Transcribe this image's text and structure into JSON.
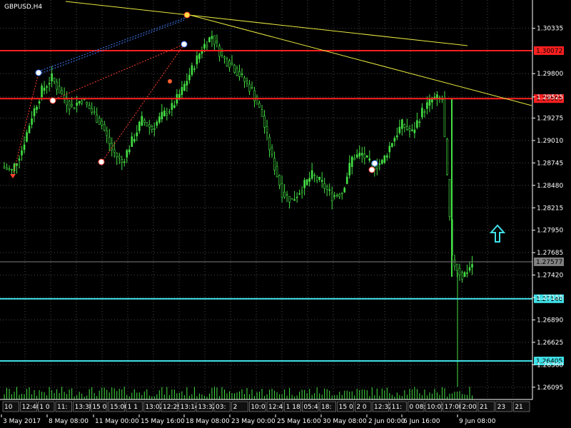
{
  "chart_data": {
    "type": "candlestick",
    "symbol_label": "GBPUSD,H4",
    "price_scale": {
      "min": 1.2595,
      "max": 1.3067,
      "ticks": [
        "1.30335",
        "1.29800",
        "1.29525",
        "1.29275",
        "1.29010",
        "1.28745",
        "1.28480",
        "1.28215",
        "1.27950",
        "1.27685",
        "1.27420",
        "1.27155",
        "1.26890",
        "1.26625",
        "1.26360",
        "1.26095"
      ]
    },
    "horizontal_lines": [
      {
        "price": 1.30072,
        "color": "#ff2020",
        "label": "1.30072"
      },
      {
        "price": 1.29505,
        "color": "#ff2020",
        "label": "1.29505"
      },
      {
        "price": 1.2714,
        "color": "#40e0e8",
        "label": "1.27140"
      },
      {
        "price": 1.26405,
        "color": "#40e0e8",
        "label": "1.26405"
      },
      {
        "price": 1.27577,
        "color": "#808080",
        "label": "1.27577"
      }
    ],
    "date_labels": [
      "3 May 2017",
      "8 May 08:00",
      "11 May 00:00",
      "15 May 16:00",
      "18 May 08:00",
      "23 May 00:00",
      "25 May 16:00",
      "30 May 08:00",
      "2 Jun 00:00",
      "6 Jun 16:00",
      "9 Jun 08:00"
    ],
    "time_strip": [
      "10",
      "12:40",
      "1 0",
      "11:",
      "13:38",
      "15 0",
      "15:00",
      "1 1",
      "13:02",
      "12:29",
      "13:14",
      "13:32",
      "03:",
      "2",
      "10:0",
      "12:4",
      "1 18",
      "05:4",
      "18:",
      "15 0",
      "2 0",
      "12:32",
      "11:",
      "0 08:00",
      "10:03",
      "17:00",
      "2:00",
      "21",
      "23",
      "21"
    ],
    "series": [
      {
        "name": "close",
        "values": [
          1.2865,
          1.289,
          1.293,
          1.296,
          1.2975,
          1.2955,
          1.294,
          1.295,
          1.2935,
          1.292,
          1.289,
          1.2875,
          1.29,
          1.2925,
          1.2915,
          1.293,
          1.294,
          1.296,
          1.2985,
          1.301,
          1.3025,
          1.3,
          1.299,
          1.2975,
          1.296,
          1.293,
          1.288,
          1.284,
          1.283,
          1.2845,
          1.286,
          1.285,
          1.2835,
          1.284,
          1.288,
          1.2885,
          1.287,
          1.2875,
          1.29,
          1.292,
          1.291,
          1.2935,
          1.295,
          1.295,
          1.276,
          1.274,
          1.2755
        ]
      }
    ]
  },
  "colors": {
    "background": "#000000",
    "candle": "#44e044",
    "grid": "#4a4a4a",
    "axis_text": "#ffffff",
    "trendline": "#e8e840",
    "arrow": "#40e0e8"
  },
  "icons": {
    "up_arrow": "up-arrow-icon"
  }
}
